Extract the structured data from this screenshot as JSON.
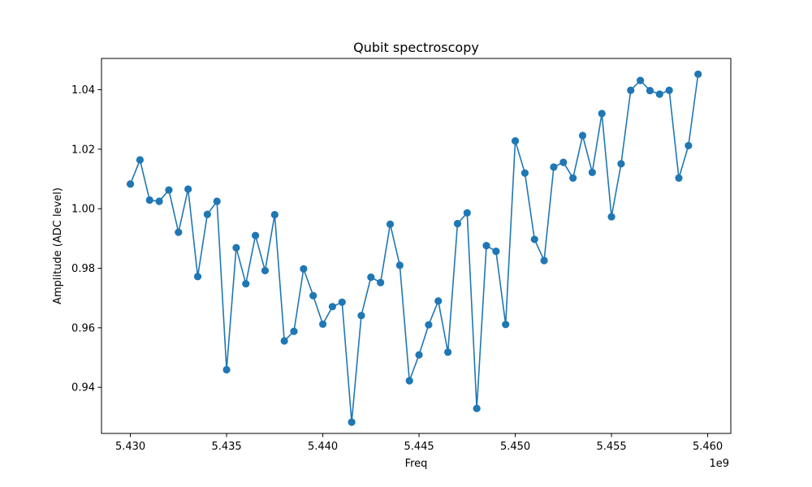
{
  "chart_data": {
    "type": "line",
    "title": "Qubit spectroscopy",
    "xlabel": "Freq",
    "ylabel": "Amplitude (ADC level)",
    "x_offset_label": "1e9",
    "xlim": [
      5.4285,
      5.4612
    ],
    "ylim": [
      0.9245,
      1.0505
    ],
    "x_ticks": [
      5.43,
      5.435,
      5.44,
      5.445,
      5.45,
      5.455,
      5.46
    ],
    "x_tick_labels": [
      "5.430",
      "5.435",
      "5.440",
      "5.445",
      "5.450",
      "5.455",
      "5.460"
    ],
    "y_ticks": [
      0.94,
      0.96,
      0.98,
      1.0,
      1.02,
      1.04
    ],
    "y_tick_labels": [
      "0.94",
      "0.96",
      "0.98",
      "1.00",
      "1.02",
      "1.04"
    ],
    "grid": false,
    "series": [
      {
        "color": "#1f77b4",
        "marker": "circle",
        "x": [
          5.43,
          5.4305,
          5.431,
          5.4315,
          5.432,
          5.4325,
          5.433,
          5.4335,
          5.434,
          5.4345,
          5.435,
          5.4355,
          5.436,
          5.4365,
          5.437,
          5.4375,
          5.438,
          5.4385,
          5.439,
          5.4395,
          5.44,
          5.4405,
          5.441,
          5.4415,
          5.442,
          5.4425,
          5.443,
          5.4435,
          5.444,
          5.4445,
          5.445,
          5.4455,
          5.446,
          5.4465,
          5.447,
          5.4475,
          5.448,
          5.4485,
          5.449,
          5.4495,
          5.45,
          5.4505,
          5.451,
          5.4515,
          5.452,
          5.4525,
          5.453,
          5.4535,
          5.454,
          5.4545,
          5.455,
          5.4555,
          5.456,
          5.4565,
          5.457,
          5.4575,
          5.458,
          5.4585,
          5.459,
          5.4595
        ],
        "y": [
          1.0083,
          1.0164,
          1.0029,
          1.0025,
          1.0063,
          0.9921,
          1.0066,
          0.9772,
          0.9981,
          1.0025,
          0.9459,
          0.9869,
          0.9748,
          0.991,
          0.9792,
          0.998,
          0.9556,
          0.9588,
          0.9798,
          0.9708,
          0.9612,
          0.9671,
          0.9686,
          0.9283,
          0.9641,
          0.977,
          0.9752,
          0.9948,
          0.981,
          0.9422,
          0.9509,
          0.961,
          0.969,
          0.9518,
          0.995,
          0.9986,
          0.9329,
          0.9876,
          0.9857,
          0.9611,
          1.0228,
          1.012,
          0.9897,
          0.9826,
          1.014,
          1.0156,
          1.0103,
          1.0246,
          1.0122,
          1.032,
          0.9973,
          1.0151,
          1.0398,
          1.0431,
          1.0397,
          1.0385,
          1.0398,
          1.0103,
          1.0212,
          1.0452
        ]
      }
    ]
  }
}
